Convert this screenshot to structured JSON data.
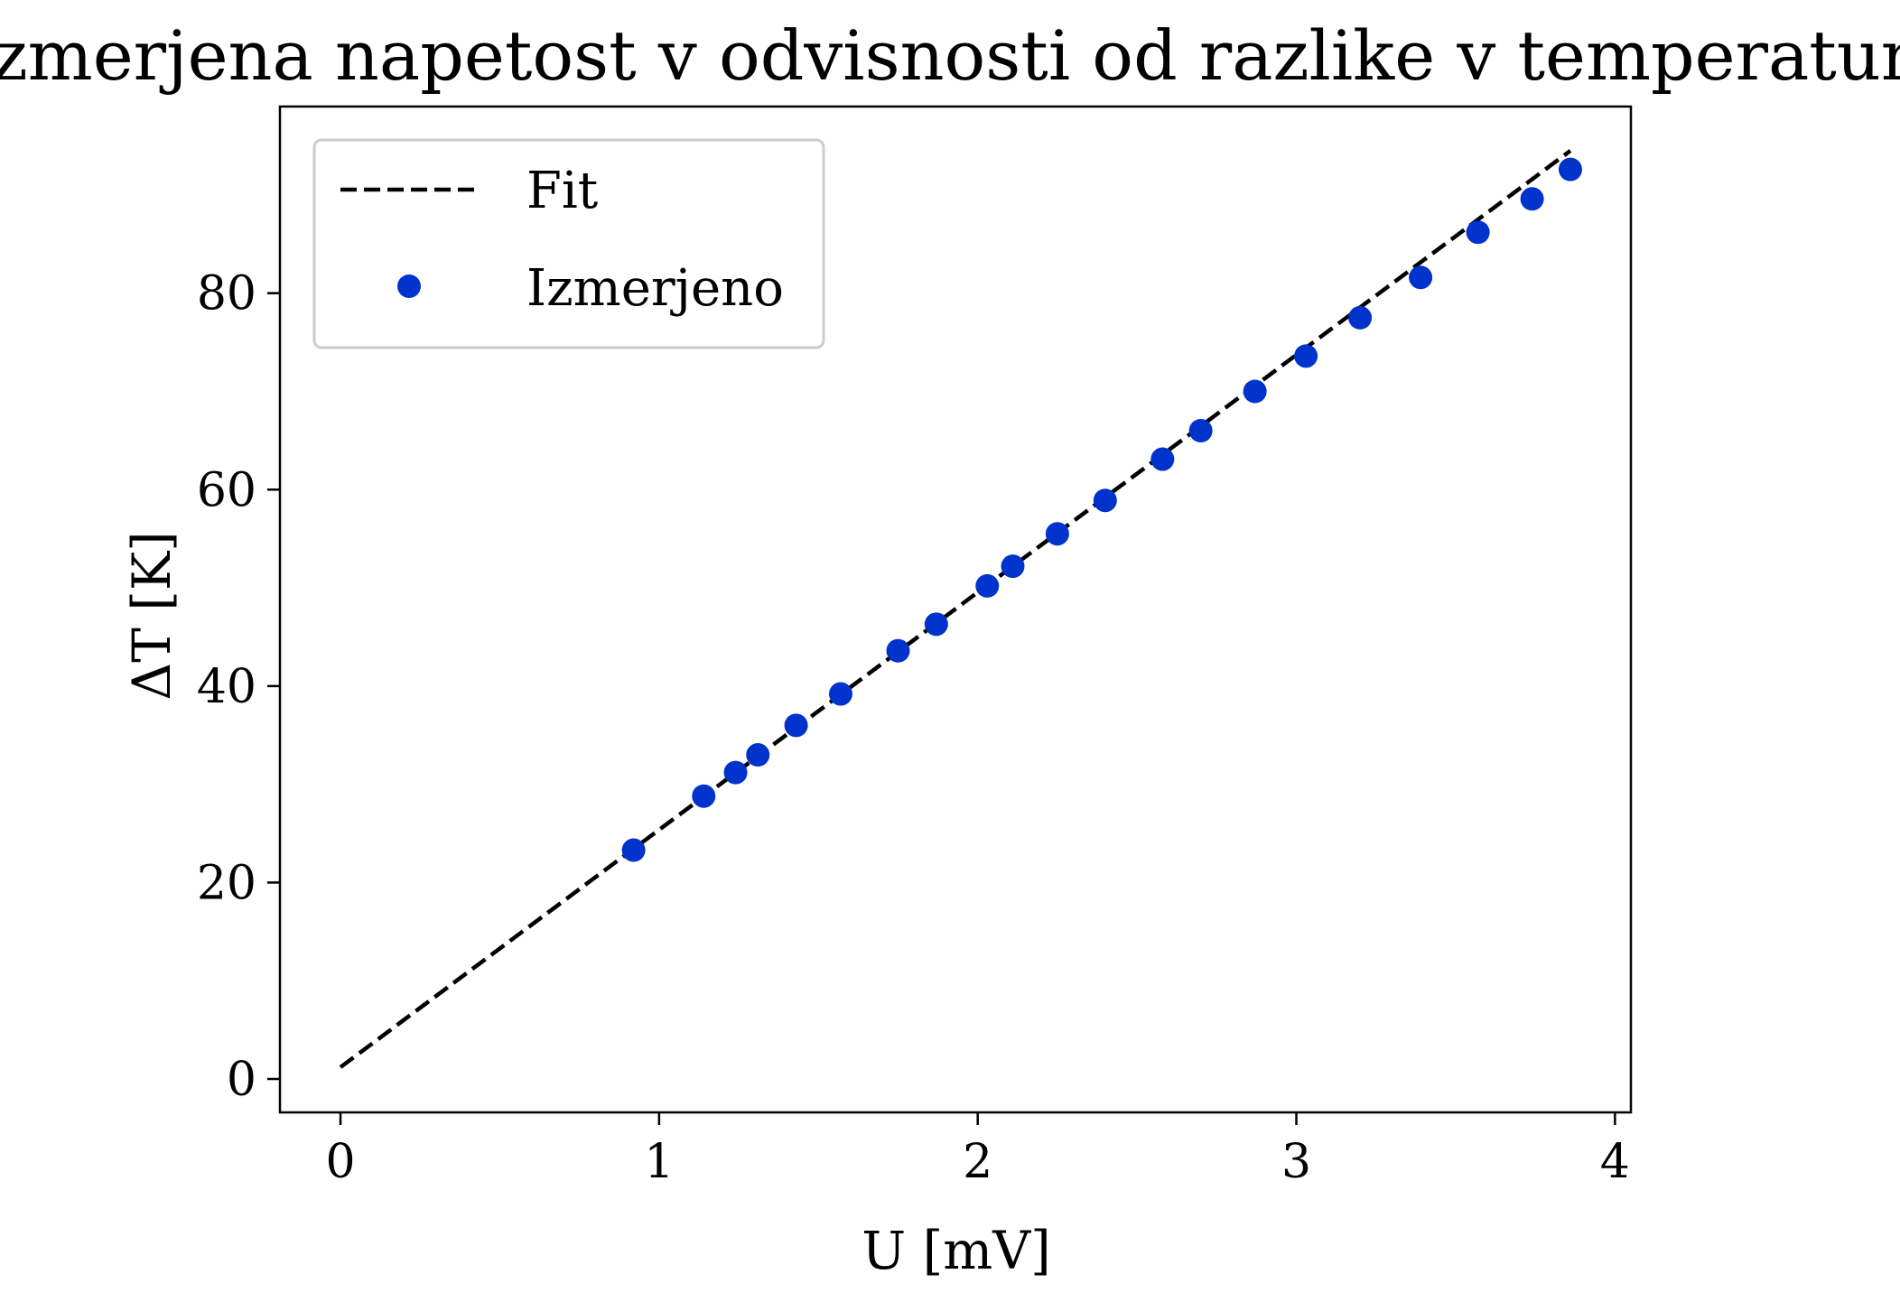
{
  "colors": {
    "fit": "#000000",
    "points": "#0033cc",
    "axes": "#000000",
    "legend_border": "#cccccc"
  },
  "chart_data": {
    "type": "scatter",
    "title": "Izmerjena napetost v odvisnosti od razlike v temperaturi",
    "xlabel": "U [mV]",
    "ylabel": "ΔT [K]",
    "xlim": [
      -0.19,
      4.05
    ],
    "ylim": [
      -3.4,
      99
    ],
    "xticks": [
      0,
      1,
      2,
      3,
      4
    ],
    "yticks": [
      0,
      20,
      40,
      60,
      80
    ],
    "grid": false,
    "legend_position": "upper-left",
    "series": [
      {
        "name": "Fit",
        "kind": "line",
        "style": "dashed",
        "x": [
          0.0,
          3.86
        ],
        "y": [
          1.2,
          94.5
        ]
      },
      {
        "name": "Izmerjeno",
        "kind": "scatter",
        "x": [
          0.92,
          1.14,
          1.24,
          1.31,
          1.43,
          1.57,
          1.75,
          1.87,
          2.03,
          2.11,
          2.25,
          2.4,
          2.58,
          2.7,
          2.87,
          3.03,
          3.2,
          3.39,
          3.57,
          3.74,
          3.86
        ],
        "y": [
          23.3,
          28.8,
          31.2,
          33.0,
          36.0,
          39.2,
          43.6,
          46.3,
          50.2,
          52.2,
          55.5,
          58.9,
          63.1,
          66.0,
          70.0,
          73.6,
          77.5,
          81.6,
          86.2,
          89.6,
          92.6
        ]
      }
    ]
  }
}
